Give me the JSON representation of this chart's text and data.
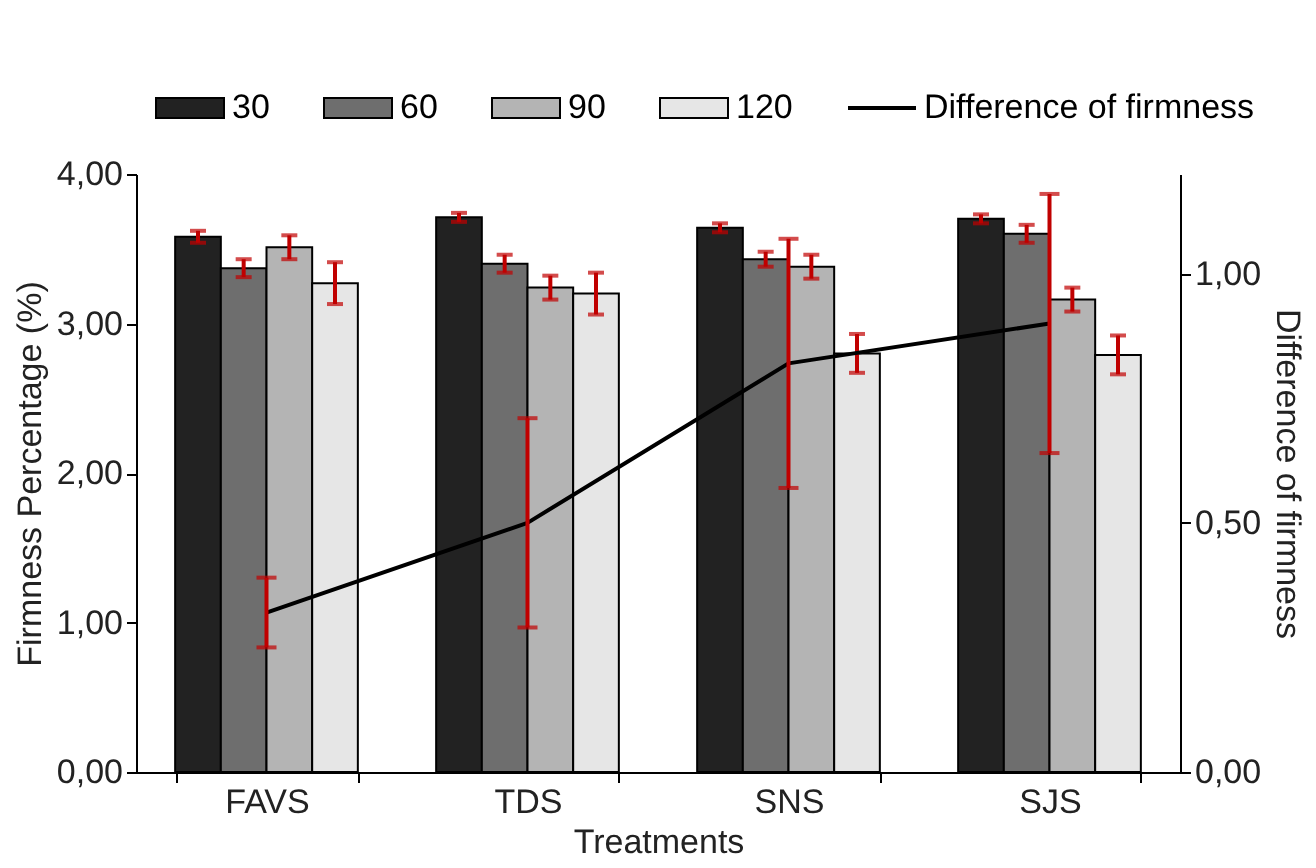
{
  "chart_data": {
    "type": "bar",
    "xlabel": "Treatments",
    "ylabel": "Firmness Percentage (%)",
    "y2label": "Difference of firmness",
    "categories": [
      "FAVS",
      "TDS",
      "SNS",
      "SJS"
    ],
    "series": [
      {
        "name": "30",
        "color": "#222222",
        "values": [
          3.58,
          3.71,
          3.64,
          3.7
        ],
        "errors": [
          0.04,
          0.03,
          0.03,
          0.03
        ]
      },
      {
        "name": "60",
        "color": "#6e6e6e",
        "values": [
          3.37,
          3.4,
          3.43,
          3.6
        ],
        "errors": [
          0.06,
          0.06,
          0.05,
          0.06
        ]
      },
      {
        "name": "90",
        "color": "#b4b4b4",
        "values": [
          3.51,
          3.24,
          3.38,
          3.16
        ],
        "errors": [
          0.08,
          0.08,
          0.08,
          0.08
        ]
      },
      {
        "name": "120",
        "color": "#e6e6e6",
        "values": [
          3.27,
          3.2,
          2.8,
          2.79
        ],
        "errors": [
          0.14,
          0.14,
          0.13,
          0.13
        ]
      },
      {
        "name": "Difference of firmness",
        "type": "line",
        "axis": "y2",
        "color": "#000000",
        "values": [
          0.32,
          0.5,
          0.82,
          0.9
        ],
        "errors": [
          0.07,
          0.21,
          0.25,
          0.26
        ]
      }
    ],
    "ylim": [
      0,
      4
    ],
    "yticks": [
      {
        "value": 0,
        "label": "0,00"
      },
      {
        "value": 1,
        "label": "1,00"
      },
      {
        "value": 2,
        "label": "2,00"
      },
      {
        "value": 3,
        "label": "3,00"
      },
      {
        "value": 4,
        "label": "4,00"
      }
    ],
    "y2lim": [
      0,
      1.2
    ],
    "y2ticks": [
      {
        "value": 0,
        "label": "0,00"
      },
      {
        "value": 0.5,
        "label": "0,50"
      },
      {
        "value": 1,
        "label": "1,00"
      }
    ],
    "grid": false,
    "legend": "top",
    "marker": "none",
    "line_style": "solid"
  }
}
